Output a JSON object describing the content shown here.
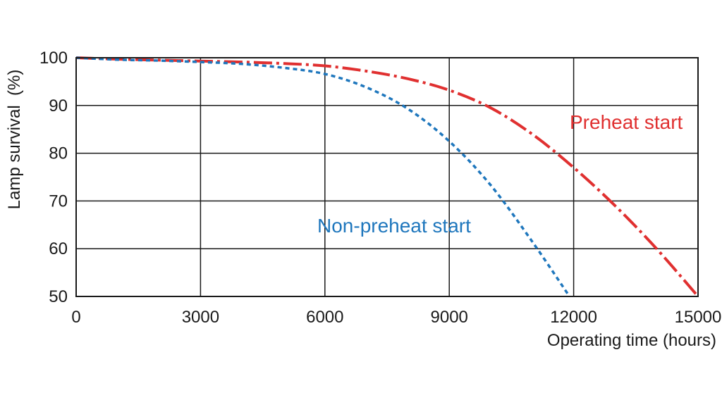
{
  "chart_data": {
    "type": "line",
    "xlabel": "Operating time (hours)",
    "ylabel": "Lamp survival  (%)",
    "xlim": [
      0,
      15000
    ],
    "ylim": [
      50,
      100
    ],
    "xticks": [
      0,
      3000,
      6000,
      9000,
      12000,
      15000
    ],
    "yticks": [
      50,
      60,
      70,
      80,
      90,
      100
    ],
    "xtick_labels": [
      "0",
      "3000",
      "6000",
      "9000",
      "12000",
      "15000"
    ],
    "ytick_labels": [
      "50",
      "60",
      "70",
      "80",
      "90",
      "100"
    ],
    "grid": true,
    "series": [
      {
        "name": "Preheat start",
        "color": "#e03030",
        "line_style": "dash-dot",
        "x": [
          0,
          1000,
          2000,
          3000,
          4000,
          5000,
          6000,
          7000,
          8000,
          9000,
          10000,
          11000,
          12000,
          13000,
          14000,
          15000
        ],
        "y": [
          100,
          99.7,
          99.5,
          99.3,
          99.1,
          98.8,
          98.3,
          97.2,
          95.6,
          93.2,
          89.5,
          84.0,
          77.0,
          69.0,
          60.0,
          50.0
        ]
      },
      {
        "name": "Non-preheat start",
        "color": "#1f77bd",
        "line_style": "dotted",
        "x": [
          0,
          1000,
          2000,
          3000,
          4000,
          5000,
          6000,
          7000,
          8000,
          9000,
          10000,
          11000,
          11900
        ],
        "y": [
          100,
          99.6,
          99.4,
          99.1,
          98.7,
          97.9,
          96.6,
          93.8,
          89.3,
          82.5,
          73.3,
          61.5,
          50.0
        ]
      }
    ]
  }
}
